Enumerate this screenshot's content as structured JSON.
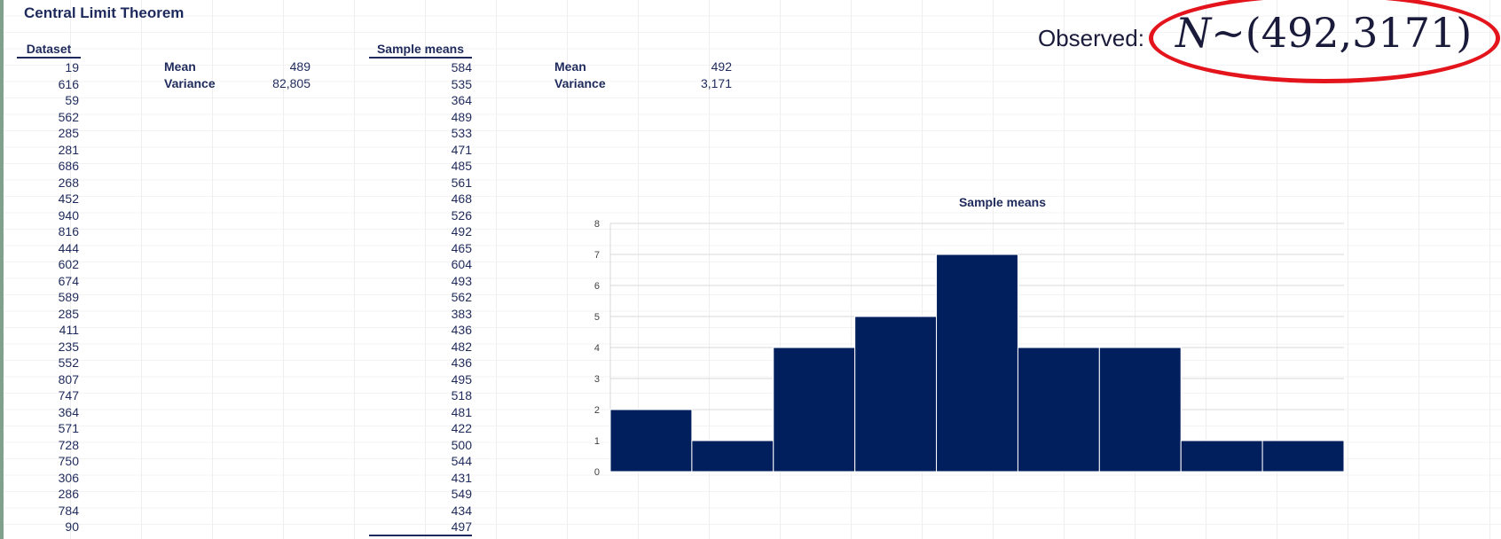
{
  "title": "Central Limit Theorem",
  "dataset": {
    "header": "Dataset",
    "values": [
      "19",
      "616",
      "59",
      "562",
      "285",
      "281",
      "686",
      "268",
      "452",
      "940",
      "816",
      "444",
      "602",
      "674",
      "589",
      "285",
      "411",
      "235",
      "552",
      "807",
      "747",
      "364",
      "571",
      "728",
      "750",
      "306",
      "286",
      "784",
      "90"
    ],
    "mean_label": "Mean",
    "mean_value": "489",
    "variance_label": "Variance",
    "variance_value": "82,805"
  },
  "sample_means": {
    "header": "Sample means",
    "values": [
      "584",
      "535",
      "364",
      "489",
      "533",
      "471",
      "485",
      "561",
      "468",
      "526",
      "492",
      "465",
      "604",
      "493",
      "562",
      "383",
      "436",
      "482",
      "436",
      "495",
      "518",
      "481",
      "422",
      "500",
      "544",
      "431",
      "549",
      "434",
      "497"
    ],
    "mean_label": "Mean",
    "mean_value": "492",
    "variance_label": "Variance",
    "variance_value": "3,171"
  },
  "annotation": {
    "observed_label": "Observed:",
    "n_symbol": "N",
    "distribution": "~(492,3171)",
    "highlight_color": "#e3141b"
  },
  "chart_data": {
    "type": "bar",
    "title": "Sample means",
    "values": [
      2,
      1,
      4,
      5,
      7,
      4,
      4,
      1,
      1
    ],
    "ylim": [
      0,
      8
    ],
    "yticks": [
      "0",
      "1",
      "2",
      "3",
      "4",
      "5",
      "6",
      "7",
      "8"
    ],
    "xlabel": "",
    "ylabel": "",
    "grid": true,
    "bar_color": "#001f5c"
  }
}
